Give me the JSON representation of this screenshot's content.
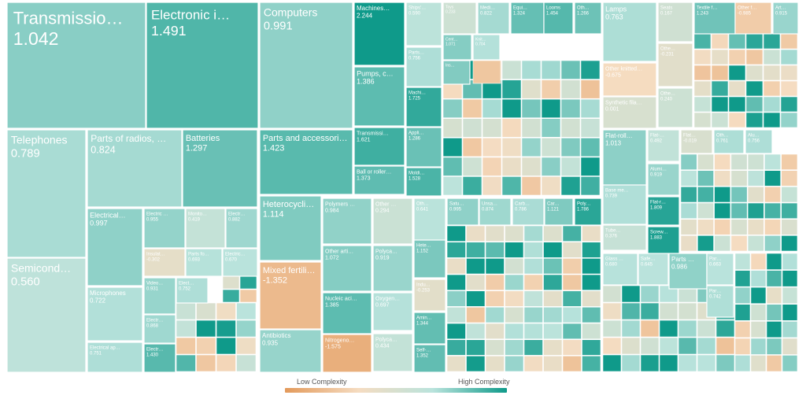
{
  "chart_data": {
    "type": "treemap",
    "color_scale": {
      "low_label": "Low Complexity",
      "high_label": "High Complexity",
      "min": -2.0,
      "max": 2.0,
      "low_color": "#e39a5b",
      "mid_color": "#f5dcc1",
      "mid2_color": "#b9e3dc",
      "high_color": "#0f9a8a"
    },
    "labeled_items": [
      {
        "name": "Transmissio…",
        "value": "1.042",
        "pci": 1.042
      },
      {
        "name": "Electronic i…",
        "value": "1.491",
        "pci": 1.491
      },
      {
        "name": "Computers",
        "value": "0.991",
        "pci": 0.991
      },
      {
        "name": "Telephones",
        "value": "0.789",
        "pci": 0.789
      },
      {
        "name": "Parts of radios, …",
        "value": "0.824",
        "pci": 0.824
      },
      {
        "name": "Batteries",
        "value": "1.297",
        "pci": 1.297
      },
      {
        "name": "Semicond…",
        "value": "0.560",
        "pci": 0.56
      },
      {
        "name": "Electrical…",
        "value": "0.997",
        "pci": 0.997
      },
      {
        "name": "Electric …",
        "value": "0.955",
        "pci": 0.955
      },
      {
        "name": "Monito…",
        "value": "0.419",
        "pci": 0.419
      },
      {
        "name": "Electr…",
        "value": "0.882",
        "pci": 0.882
      },
      {
        "name": "Insulat…",
        "value": "-0.302",
        "pci": -0.302
      },
      {
        "name": "Parts fo…",
        "value": "0.693",
        "pci": 0.693
      },
      {
        "name": "Electric…",
        "value": "0.670",
        "pci": 0.67
      },
      {
        "name": "Microphones",
        "value": "0.722",
        "pci": 0.722
      },
      {
        "name": "Video…",
        "value": "0.931",
        "pci": 0.931
      },
      {
        "name": "Elect…",
        "value": "0.752",
        "pci": 0.752
      },
      {
        "name": "Electr…",
        "value": "0.868",
        "pci": 0.868
      },
      {
        "name": "Electrical ap…",
        "value": "0.751",
        "pci": 0.751
      },
      {
        "name": "Electr…",
        "value": "1.430",
        "pci": 1.43
      },
      {
        "name": "Parts and accessori…",
        "value": "1.423",
        "pci": 1.423
      },
      {
        "name": "Heterocycli…",
        "value": "1.114",
        "pci": 1.114
      },
      {
        "name": "Mixed fertili…",
        "value": "-1.352",
        "pci": -1.352
      },
      {
        "name": "Antibiotics",
        "value": "0.935",
        "pci": 0.935
      },
      {
        "name": "Machines…",
        "value": "2.244",
        "pci": 2.244
      },
      {
        "name": "Pumps, c…",
        "value": "1.386",
        "pci": 1.386
      },
      {
        "name": "Transmissi…",
        "value": "1.621",
        "pci": 1.621
      },
      {
        "name": "Ball or roller…",
        "value": "1.373",
        "pci": 1.373
      },
      {
        "name": "Ships'…",
        "value": "0.590",
        "pci": 0.59
      },
      {
        "name": "Parts…",
        "value": "0.756",
        "pci": 0.756
      },
      {
        "name": "Machi…",
        "value": "1.725",
        "pci": 1.725
      },
      {
        "name": "Appli…",
        "value": "1.286",
        "pci": 1.286
      },
      {
        "name": "Moldi…",
        "value": "1.528",
        "pci": 1.528
      },
      {
        "name": "Toys",
        "value": "0.233",
        "pci": 0.233
      },
      {
        "name": "Medi…",
        "value": "0.822",
        "pci": 0.822
      },
      {
        "name": "Equi…",
        "value": "1.324",
        "pci": 1.324
      },
      {
        "name": "Looms",
        "value": "1.454",
        "pci": 1.454
      },
      {
        "name": "Oth…",
        "value": "1.266",
        "pci": 1.266
      },
      {
        "name": "Cent…",
        "value": "1.071",
        "pci": 1.071
      },
      {
        "name": "Knit…",
        "value": "0.704",
        "pci": 0.704
      },
      {
        "name": "Ins…",
        "value": "",
        "pci": 1.1
      },
      {
        "name": "Polymers …",
        "value": "0.984",
        "pci": 0.984
      },
      {
        "name": "Other …",
        "value": "0.294",
        "pci": 0.294
      },
      {
        "name": "Oth…",
        "value": "0.641",
        "pci": 0.641
      },
      {
        "name": "Satu…",
        "value": "0.995",
        "pci": 0.995
      },
      {
        "name": "Unsa…",
        "value": "0.874",
        "pci": 0.874
      },
      {
        "name": "Carb…",
        "value": "0.786",
        "pci": 0.786
      },
      {
        "name": "Car…",
        "value": "1.121",
        "pci": 1.121
      },
      {
        "name": "Poly…",
        "value": "1.786",
        "pci": 1.786
      },
      {
        "name": "Other arti…",
        "value": "1.072",
        "pci": 1.072
      },
      {
        "name": "Polyca…",
        "value": "0.919",
        "pci": 0.919
      },
      {
        "name": "Hete…",
        "value": "1.152",
        "pci": 1.152
      },
      {
        "name": "Nucleic aci…",
        "value": "1.385",
        "pci": 1.385
      },
      {
        "name": "Oxygen…",
        "value": "0.697",
        "pci": 0.697
      },
      {
        "name": "Indu…",
        "value": "-0.253",
        "pci": -0.253
      },
      {
        "name": "Amin…",
        "value": "1.344",
        "pci": 1.344
      },
      {
        "name": "Nitrogeno…",
        "value": "-1.575",
        "pci": -1.575
      },
      {
        "name": "Polyca…",
        "value": "0.434",
        "pci": 0.434
      },
      {
        "name": "Self-…",
        "value": "1.352",
        "pci": 1.352
      },
      {
        "name": "Lamps",
        "value": "0.763",
        "pci": 0.763
      },
      {
        "name": "Seats",
        "value": "0.167",
        "pci": 0.167
      },
      {
        "name": "Textile f…",
        "value": "1.243",
        "pci": 1.243
      },
      {
        "name": "Other f…",
        "value": "-0.985",
        "pci": -0.985
      },
      {
        "name": "Art…",
        "value": "0.915",
        "pci": 0.915
      },
      {
        "name": "Othe…",
        "value": "-0.231",
        "pci": -0.231
      },
      {
        "name": "Other knitted…",
        "value": "-0.675",
        "pci": -0.675
      },
      {
        "name": "Synthetic fila…",
        "value": "0.001",
        "pci": 0.001
      },
      {
        "name": "Othe…",
        "value": "0.240",
        "pci": 0.24
      },
      {
        "name": "Flat-roll…",
        "value": "1.013",
        "pci": 1.013
      },
      {
        "name": "Flat-…",
        "value": "0.492",
        "pci": 0.492
      },
      {
        "name": "Flat…",
        "value": "-0.019",
        "pci": -0.019
      },
      {
        "name": "Oth…",
        "value": "0.761",
        "pci": 0.761
      },
      {
        "name": "Alu…",
        "value": "0.756",
        "pci": 0.756
      },
      {
        "name": "Alumi…",
        "value": "0.919",
        "pci": 0.919
      },
      {
        "name": "Base me…",
        "value": "0.739",
        "pci": 0.739
      },
      {
        "name": "Flat-r…",
        "value": "1.809",
        "pci": 1.809
      },
      {
        "name": "Tube…",
        "value": "0.376",
        "pci": 0.376
      },
      {
        "name": "Screw…",
        "value": "1.883",
        "pci": 1.883
      },
      {
        "name": "Glass …",
        "value": "0.680",
        "pci": 0.68
      },
      {
        "name": "Safe…",
        "value": "0.645",
        "pci": 0.645
      },
      {
        "name": "Parts …",
        "value": "0.986",
        "pci": 0.986
      },
      {
        "name": "Par…",
        "value": "0.663",
        "pci": 0.663
      },
      {
        "name": "Par…",
        "value": "0.742",
        "pci": 0.742
      }
    ]
  }
}
